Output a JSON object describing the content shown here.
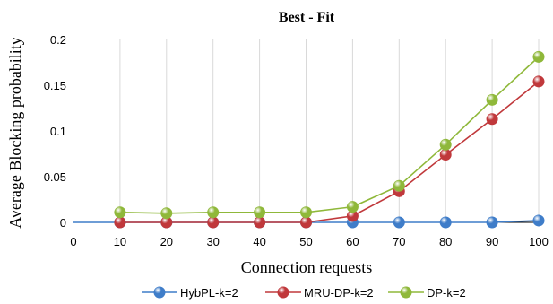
{
  "chart_data": {
    "type": "line",
    "title": "Best - Fit",
    "xlabel": "Connection requests",
    "ylabel": "Average Blocking probability",
    "x": [
      0,
      10,
      20,
      30,
      40,
      50,
      60,
      70,
      80,
      90,
      100
    ],
    "x_ticks": [
      "0",
      "10",
      "20",
      "30",
      "40",
      "50",
      "60",
      "70",
      "80",
      "90",
      "100"
    ],
    "y_ticks": [
      "0",
      "0.05",
      "0.1",
      "0.15",
      "0.2"
    ],
    "xlim": [
      0,
      100
    ],
    "ylim": [
      0,
      0.2
    ],
    "grid": "vertical",
    "legend_position": "bottom",
    "series": [
      {
        "name": "HybPL-k=2",
        "color": "#3f7dc9",
        "x": [
          0,
          10,
          20,
          30,
          40,
          50,
          60,
          70,
          80,
          90,
          100
        ],
        "values": [
          0,
          0,
          0,
          0,
          0,
          0,
          0,
          0,
          0,
          0,
          0.002
        ],
        "markers": [
          false,
          true,
          true,
          true,
          true,
          true,
          true,
          true,
          true,
          true,
          true
        ]
      },
      {
        "name": "MRU-DP-k=2",
        "color": "#c0383b",
        "x": [
          10,
          20,
          30,
          40,
          50,
          60,
          70,
          80,
          90,
          100
        ],
        "values": [
          0,
          0,
          0,
          0,
          0,
          0.007,
          0.034,
          0.074,
          0.113,
          0.154
        ],
        "markers": [
          true,
          true,
          true,
          true,
          true,
          true,
          true,
          true,
          true,
          true
        ]
      },
      {
        "name": "DP-k=2",
        "color": "#8fb83a",
        "x": [
          10,
          20,
          30,
          40,
          50,
          60,
          70,
          80,
          90,
          100
        ],
        "values": [
          0.011,
          0.01,
          0.011,
          0.011,
          0.011,
          0.017,
          0.04,
          0.085,
          0.134,
          0.181
        ],
        "markers": [
          true,
          true,
          true,
          true,
          true,
          true,
          true,
          true,
          true,
          true
        ]
      }
    ]
  }
}
